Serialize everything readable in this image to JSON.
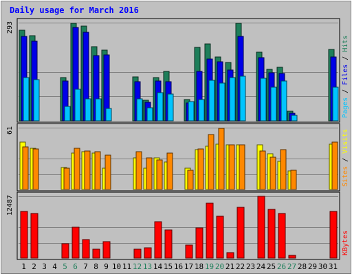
{
  "chart_data": {
    "type": "bar",
    "title": "Daily usage for March 2016",
    "days": [
      "1",
      "2",
      "3",
      "4",
      "5",
      "6",
      "7",
      "8",
      "9",
      "10",
      "11",
      "12",
      "13",
      "14",
      "15",
      "16",
      "17",
      "18",
      "19",
      "20",
      "21",
      "22",
      "23",
      "24",
      "25",
      "26",
      "27",
      "28",
      "29",
      "30",
      "31"
    ],
    "weekend_days": [
      "5",
      "6",
      "12",
      "13",
      "19",
      "20",
      "26",
      "27"
    ],
    "panels": [
      {
        "name": "hits",
        "max_label": "293",
        "ymax": 293,
        "side_labels": [
          "Pages",
          "Files",
          "Hits"
        ],
        "series": [
          {
            "name": "Hits",
            "color": "#1e7e5a",
            "values": [
              270,
              254,
              0,
              0,
              130,
              290,
              283,
              222,
              212,
              0,
              0,
              131,
              62,
              130,
              147,
              0,
              64,
              219,
              229,
              190,
              175,
              290,
              0,
              205,
              154,
              159,
              28,
              0,
              0,
              0,
              213
            ]
          },
          {
            "name": "Files",
            "color": "#0000e8",
            "values": [
              252,
              237,
              0,
              0,
              118,
              279,
              265,
              195,
              197,
              0,
              0,
              117,
              56,
              118,
              117,
              0,
              54,
              148,
              185,
              177,
              151,
              252,
              0,
              189,
              143,
              141,
              22,
              0,
              0,
              0,
              191
            ]
          },
          {
            "name": "Pages",
            "color": "#00c4ff",
            "values": [
              130,
              122,
              0,
              0,
              43,
              94,
              66,
              66,
              36,
              0,
              0,
              66,
              38,
              85,
              80,
              0,
              58,
              64,
              121,
              113,
              129,
              133,
              0,
              128,
              101,
              118,
              17,
              0,
              0,
              0,
              101
            ]
          }
        ]
      },
      {
        "name": "visits",
        "max_label": "61",
        "ymax": 61,
        "side_labels": [
          "Sites",
          "Visits"
        ],
        "series": [
          {
            "name": "Visits",
            "color": "#ffff00",
            "values": [
              47,
              41,
              0,
              0,
              22,
              36,
              37,
              36,
              21,
              0,
              0,
              31,
              21,
              31,
              27,
              0,
              21,
              39,
              43,
              45,
              44,
              44,
              0,
              44,
              35,
              28,
              18,
              0,
              0,
              0,
              45
            ]
          },
          {
            "name": "Sites",
            "color": "#ff8800",
            "values": [
              42,
              40,
              0,
              0,
              21,
              41,
              38,
              37,
              34,
              0,
              0,
              37,
              31,
              29,
              36,
              0,
              19,
              40,
              54,
              60,
              44,
              44,
              0,
              38,
              32,
              39,
              19,
              0,
              0,
              0,
              47
            ]
          }
        ]
      },
      {
        "name": "kbytes",
        "max_label": "12487",
        "ymax": 12487,
        "side_labels": [
          "KBytes"
        ],
        "series": [
          {
            "name": "KBytes",
            "color": "#ff0000",
            "values": [
              9440,
              9010,
              0,
              0,
              2960,
              6290,
              3780,
              1820,
              3370,
              0,
              0,
              1820,
              2130,
              7380,
              5710,
              0,
              2670,
              6040,
              11060,
              8430,
              1150,
              10230,
              0,
              12487,
              9820,
              9030,
              590,
              0,
              0,
              0,
              9500
            ]
          }
        ]
      }
    ]
  }
}
